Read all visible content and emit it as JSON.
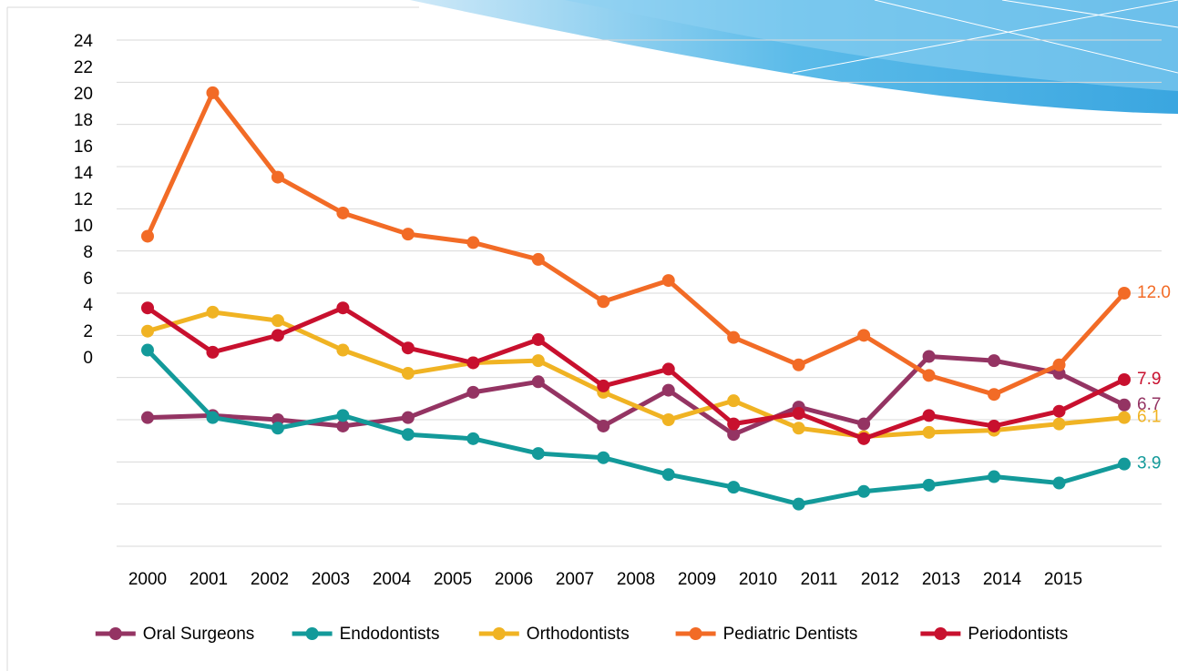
{
  "chart_data": {
    "type": "line",
    "categories": [
      "2000",
      "2001",
      "2002",
      "2003",
      "2004",
      "2005",
      "2006",
      "2007",
      "2008",
      "2009",
      "2010",
      "2011",
      "2012",
      "2013",
      "2014",
      "2015"
    ],
    "ylim": [
      0,
      24
    ],
    "yticks": [
      24,
      22,
      20,
      18,
      16,
      14,
      12,
      10,
      8,
      6,
      4,
      2,
      0
    ],
    "grid": true,
    "series": [
      {
        "name": "Oral Surgeons",
        "color": "#943463",
        "values": [
          6.1,
          6.2,
          6.0,
          5.7,
          6.1,
          7.3,
          7.8,
          5.7,
          7.4,
          5.3,
          6.6,
          5.8,
          9.0,
          8.8,
          8.2,
          6.7
        ],
        "value_labels": [
          null,
          null,
          null,
          null,
          null,
          null,
          null,
          null,
          null,
          null,
          null,
          null,
          null,
          null,
          null,
          "6.7"
        ]
      },
      {
        "name": "Endodontists",
        "color": "#139a9a",
        "values": [
          9.3,
          6.1,
          5.6,
          6.2,
          5.3,
          5.1,
          4.4,
          4.2,
          3.4,
          2.8,
          2.0,
          2.6,
          2.9,
          3.3,
          3.0,
          3.9
        ],
        "value_labels": [
          null,
          null,
          null,
          null,
          null,
          null,
          null,
          null,
          null,
          null,
          null,
          null,
          null,
          null,
          null,
          "3.9"
        ]
      },
      {
        "name": "Orthodontists",
        "color": "#f0b323",
        "values": [
          10.2,
          11.1,
          10.7,
          9.3,
          8.2,
          8.7,
          8.8,
          7.3,
          6.0,
          6.9,
          5.6,
          5.2,
          5.4,
          5.5,
          5.8,
          6.1
        ],
        "value_labels": [
          null,
          null,
          null,
          null,
          null,
          null,
          null,
          null,
          null,
          null,
          null,
          null,
          null,
          null,
          null,
          "6.1"
        ]
      },
      {
        "name": "Pediatric Dentists",
        "color": "#f26b26",
        "values": [
          14.7,
          21.5,
          17.5,
          15.8,
          14.8,
          14.4,
          13.6,
          11.6,
          12.6,
          9.9,
          8.6,
          10.0,
          8.1,
          7.2,
          8.6,
          12.0
        ],
        "value_labels": [
          null,
          null,
          null,
          null,
          null,
          null,
          null,
          null,
          null,
          null,
          null,
          null,
          null,
          null,
          null,
          "12.0"
        ]
      },
      {
        "name": "Periodontists",
        "color": "#c8102e",
        "values": [
          11.3,
          9.2,
          10.0,
          11.3,
          9.4,
          8.7,
          9.8,
          7.6,
          8.4,
          5.8,
          6.3,
          5.1,
          6.2,
          5.7,
          6.4,
          7.9
        ],
        "value_labels": [
          null,
          null,
          null,
          null,
          null,
          null,
          null,
          null,
          null,
          null,
          null,
          null,
          null,
          null,
          null,
          "7.9"
        ]
      }
    ]
  }
}
